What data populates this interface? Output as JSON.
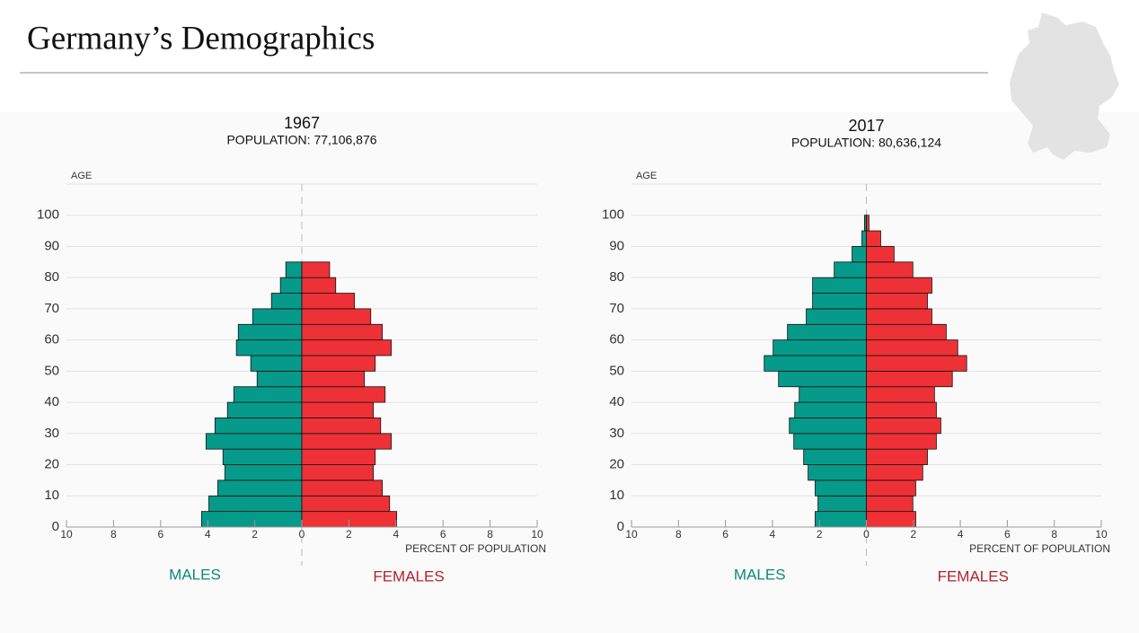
{
  "header": {
    "title": "Germany’s Demographics"
  },
  "chart_data": [
    {
      "type": "population_pyramid",
      "title": "1967",
      "subtitle": "POPULATION: 77,106,876",
      "y_label": "AGE",
      "x_label": "PERCENT OF POPULATION",
      "age_bins": [
        0,
        5,
        10,
        15,
        20,
        25,
        30,
        35,
        40,
        45,
        50,
        55,
        60,
        65,
        70,
        75,
        80,
        85,
        90,
        95,
        100
      ],
      "series": [
        {
          "name": "MALES",
          "color": "#069a8a",
          "side": "left",
          "values": [
            4.26,
            3.95,
            3.57,
            3.27,
            3.35,
            4.07,
            3.69,
            3.16,
            2.89,
            1.9,
            2.17,
            2.78,
            2.7,
            2.09,
            1.29,
            0.91,
            0.68,
            0,
            0,
            0
          ]
        },
        {
          "name": "FEMALES",
          "color": "#ee3136",
          "side": "right",
          "values": [
            4.03,
            3.73,
            3.42,
            3.04,
            3.12,
            3.8,
            3.35,
            3.04,
            3.54,
            2.66,
            3.12,
            3.8,
            3.42,
            2.93,
            2.24,
            1.44,
            1.18,
            0,
            0,
            0
          ]
        }
      ],
      "xlim": [
        -10,
        10
      ],
      "xticks": [
        {
          "value": -10,
          "label": "10"
        },
        {
          "value": -8,
          "label": "8"
        },
        {
          "value": -6,
          "label": "6"
        },
        {
          "value": -4,
          "label": "4"
        },
        {
          "value": -2,
          "label": "2"
        },
        0,
        2,
        4,
        6,
        8,
        10
      ],
      "ylim": [
        0,
        110
      ],
      "yticks": [
        0,
        10,
        20,
        30,
        40,
        50,
        60,
        70,
        80,
        90,
        100
      ],
      "grid": true
    },
    {
      "type": "population_pyramid",
      "title": "2017",
      "subtitle": "POPULATION: 80,636,124",
      "y_label": "AGE",
      "x_label": "PERCENT OF POPULATION",
      "age_bins": [
        0,
        5,
        10,
        15,
        20,
        25,
        30,
        35,
        40,
        45,
        50,
        55,
        60,
        65,
        70,
        75,
        80,
        85,
        90,
        95,
        100
      ],
      "series": [
        {
          "name": "MALES",
          "color": "#069a8a",
          "side": "left",
          "values": [
            2.18,
            2.06,
            2.18,
            2.48,
            2.67,
            3.09,
            3.28,
            3.05,
            2.86,
            3.74,
            4.35,
            3.97,
            3.36,
            2.56,
            2.29,
            2.29,
            1.37,
            0.61,
            0.19,
            0.08
          ]
        },
        {
          "name": "FEMALES",
          "color": "#ee3136",
          "side": "right",
          "values": [
            2.1,
            1.98,
            2.1,
            2.4,
            2.6,
            2.98,
            3.17,
            2.98,
            2.9,
            3.66,
            4.27,
            3.89,
            3.4,
            2.79,
            2.6,
            2.79,
            1.98,
            1.18,
            0.61,
            0.11
          ]
        }
      ],
      "xlim": [
        -10,
        10
      ],
      "xticks": [
        {
          "value": -10,
          "label": "10"
        },
        {
          "value": -8,
          "label": "8"
        },
        {
          "value": -6,
          "label": "6"
        },
        {
          "value": -4,
          "label": "4"
        },
        {
          "value": -2,
          "label": "2"
        },
        0,
        2,
        4,
        6,
        8,
        10
      ],
      "ylim": [
        0,
        110
      ],
      "yticks": [
        0,
        10,
        20,
        30,
        40,
        50,
        60,
        70,
        80,
        90,
        100
      ],
      "grid": true
    }
  ]
}
